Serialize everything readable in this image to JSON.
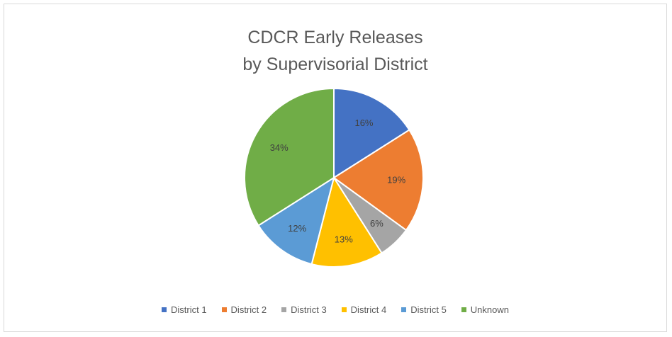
{
  "chart_data": {
    "type": "pie",
    "title_lines": [
      "CDCR Early Releases",
      "by Supervisorial District"
    ],
    "categories": [
      "District 1",
      "District 2",
      "District 3",
      "District 4",
      "District 5",
      "Unknown"
    ],
    "values": [
      16,
      19,
      6,
      13,
      12,
      34
    ],
    "data_labels": [
      "16%",
      "19%",
      "6%",
      "13%",
      "12%",
      "34%"
    ],
    "colors": [
      "#4472C4",
      "#ED7D31",
      "#A5A5A5",
      "#FFC000",
      "#5B9BD5",
      "#70AD47"
    ],
    "legend_position": "bottom",
    "start_angle_deg": 0,
    "direction": "clockwise"
  }
}
